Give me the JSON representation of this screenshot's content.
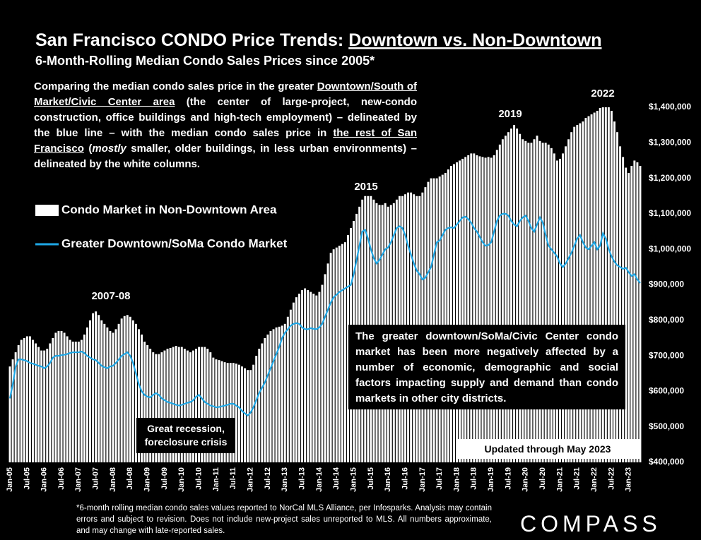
{
  "chart_data": {
    "type": "bar",
    "title": "San Francisco CONDO Price Trends: ",
    "title_underlined": "Downtown vs. Non-Downtown",
    "subtitle": "6-Month-Rolling Median Condo Sales Prices since 2005*",
    "description": [
      {
        "text": "Comparing the median condo sales price in the greater "
      },
      {
        "text": "Downtown/South of Market/Civic Center area",
        "style": "underline"
      },
      {
        "text": " (the center of large-project, new-condo construction, office buildings and high-tech employment) – delineated by the blue line – with the median condo sales price in "
      },
      {
        "text": "the rest of San Francisco",
        "style": "underline"
      },
      {
        "text": " ("
      },
      {
        "text": "mostly",
        "style": "italic"
      },
      {
        "text": " smaller, older buildings, in less urban environments) – delineated by the white columns."
      }
    ],
    "annotations": [
      "2007-08",
      "2015",
      "2019",
      "2022"
    ],
    "notes": {
      "recession": "Great recession, foreclosure crisis",
      "downtown": "The greater downtown/SoMa/Civic Center condo market has been more negatively affected by a number of economic, demographic and social factors impacting supply and demand than condo markets in other city districts.",
      "updated": "Updated through May 2023"
    },
    "footnote": "*6-month rolling median condo sales values reported to NorCal MLS Alliance, per Infosparks. Analysis may contain errors and subject to revision. Does not include new-project sales unreported to MLS. All numbers approximate, and may change with late-reported sales.",
    "logo": "COMPASS",
    "ylim": [
      400000,
      1500000
    ],
    "yticks": [
      {
        "value": 400000,
        "label": "$400,000"
      },
      {
        "value": 500000,
        "label": "$500,000"
      },
      {
        "value": 600000,
        "label": "$600,000"
      },
      {
        "value": 700000,
        "label": "$700,000"
      },
      {
        "value": 800000,
        "label": "$800,000"
      },
      {
        "value": 900000,
        "label": "$900,000"
      },
      {
        "value": 1000000,
        "label": "$1,000,000"
      },
      {
        "value": 1100000,
        "label": "$1,100,000"
      },
      {
        "value": 1200000,
        "label": "$1,200,000"
      },
      {
        "value": 1300000,
        "label": "$1,300,000"
      },
      {
        "value": 1400000,
        "label": "$1,400,000"
      }
    ],
    "grid": false,
    "categories": [
      "Jan-05",
      null,
      null,
      null,
      null,
      null,
      "Jul-05",
      null,
      null,
      null,
      null,
      null,
      "Jan-06",
      null,
      null,
      null,
      null,
      null,
      "Jul-06",
      null,
      null,
      null,
      null,
      null,
      "Jan-07",
      null,
      null,
      null,
      null,
      null,
      "Jul-07",
      null,
      null,
      null,
      null,
      null,
      "Jan-08",
      null,
      null,
      null,
      null,
      null,
      "Jul-08",
      null,
      null,
      null,
      null,
      null,
      "Jan-09",
      null,
      null,
      null,
      null,
      null,
      "Jul-09",
      null,
      null,
      null,
      null,
      null,
      "Jan-10",
      null,
      null,
      null,
      null,
      null,
      "Jul-10",
      null,
      null,
      null,
      null,
      null,
      "Jan-11",
      null,
      null,
      null,
      null,
      null,
      "Jul-11",
      null,
      null,
      null,
      null,
      null,
      "Jan-12",
      null,
      null,
      null,
      null,
      null,
      "Jul-12",
      null,
      null,
      null,
      null,
      null,
      "Jan-13",
      null,
      null,
      null,
      null,
      null,
      "Jul-13",
      null,
      null,
      null,
      null,
      null,
      "Jan-14",
      null,
      null,
      null,
      null,
      null,
      "Jul-14",
      null,
      null,
      null,
      null,
      null,
      "Jan-15",
      null,
      null,
      null,
      null,
      null,
      "Jul-15",
      null,
      null,
      null,
      null,
      null,
      "Jan-16",
      null,
      null,
      null,
      null,
      null,
      "Jul-16",
      null,
      null,
      null,
      null,
      null,
      "Jan-17",
      null,
      null,
      null,
      null,
      null,
      "Jul-17",
      null,
      null,
      null,
      null,
      null,
      "Jan-18",
      null,
      null,
      null,
      null,
      null,
      "Jul-18",
      null,
      null,
      null,
      null,
      null,
      "Jan-19",
      null,
      null,
      null,
      null,
      null,
      "Jul-19",
      null,
      null,
      null,
      null,
      null,
      "Jan-20",
      null,
      null,
      null,
      null,
      null,
      "Jul-20",
      null,
      null,
      null,
      null,
      null,
      "Jan-21",
      null,
      null,
      null,
      null,
      null,
      "Jul-21",
      null,
      null,
      null,
      null,
      null,
      "Jan-22",
      null,
      null,
      null,
      null,
      null,
      "Jul-22",
      null,
      null,
      null,
      null,
      null,
      "Jan-23",
      null,
      null,
      null,
      null
    ],
    "series": [
      {
        "name": "Condo Market in Non-Downtown Area",
        "type": "bar",
        "color": "#ffffff",
        "values": [
          670000,
          690000,
          710000,
          730000,
          745000,
          750000,
          755000,
          755000,
          745000,
          735000,
          725000,
          715000,
          715000,
          720000,
          735000,
          750000,
          765000,
          770000,
          770000,
          765000,
          755000,
          745000,
          740000,
          740000,
          740000,
          745000,
          760000,
          780000,
          800000,
          820000,
          825000,
          815000,
          800000,
          790000,
          780000,
          770000,
          765000,
          775000,
          790000,
          805000,
          812000,
          815000,
          810000,
          800000,
          790000,
          775000,
          760000,
          740000,
          730000,
          720000,
          710000,
          705000,
          705000,
          710000,
          715000,
          720000,
          722000,
          725000,
          728000,
          725000,
          725000,
          720000,
          715000,
          710000,
          715000,
          720000,
          725000,
          725000,
          725000,
          720000,
          710000,
          695000,
          690000,
          688000,
          685000,
          682000,
          680000,
          680000,
          680000,
          678000,
          675000,
          670000,
          665000,
          660000,
          660000,
          675000,
          700000,
          720000,
          735000,
          750000,
          760000,
          770000,
          775000,
          780000,
          782000,
          785000,
          790000,
          810000,
          830000,
          850000,
          865000,
          875000,
          885000,
          890000,
          885000,
          880000,
          875000,
          870000,
          880000,
          900000,
          930000,
          960000,
          990000,
          1000000,
          1005000,
          1010000,
          1015000,
          1020000,
          1040000,
          1060000,
          1080000,
          1100000,
          1120000,
          1140000,
          1150000,
          1150000,
          1150000,
          1140000,
          1130000,
          1125000,
          1125000,
          1130000,
          1120000,
          1125000,
          1130000,
          1140000,
          1150000,
          1150000,
          1155000,
          1160000,
          1160000,
          1155000,
          1150000,
          1150000,
          1160000,
          1175000,
          1190000,
          1200000,
          1200000,
          1200000,
          1205000,
          1210000,
          1215000,
          1225000,
          1235000,
          1240000,
          1245000,
          1250000,
          1255000,
          1260000,
          1265000,
          1270000,
          1270000,
          1265000,
          1262000,
          1260000,
          1258000,
          1260000,
          1258000,
          1265000,
          1280000,
          1295000,
          1310000,
          1320000,
          1330000,
          1340000,
          1350000,
          1340000,
          1325000,
          1310000,
          1305000,
          1300000,
          1300000,
          1310000,
          1320000,
          1305000,
          1300000,
          1300000,
          1295000,
          1285000,
          1270000,
          1250000,
          1255000,
          1270000,
          1290000,
          1310000,
          1330000,
          1345000,
          1350000,
          1355000,
          1360000,
          1370000,
          1375000,
          1380000,
          1385000,
          1390000,
          1398000,
          1400000,
          1400000,
          1400000,
          1390000,
          1360000,
          1330000,
          1290000,
          1260000,
          1230000,
          1215000,
          1235000,
          1250000,
          1245000,
          1235000
        ]
      },
      {
        "name": "Greater Downtown/SoMa Condo Market",
        "type": "line",
        "color": "#1ea7e6",
        "values": [
          580000,
          620000,
          670000,
          690000,
          690000,
          688000,
          685000,
          680000,
          678000,
          675000,
          672000,
          670000,
          665000,
          670000,
          680000,
          695000,
          700000,
          700000,
          702000,
          703000,
          705000,
          708000,
          710000,
          710000,
          710000,
          712000,
          708000,
          700000,
          695000,
          690000,
          688000,
          680000,
          672000,
          668000,
          665000,
          670000,
          672000,
          680000,
          690000,
          700000,
          705000,
          710000,
          700000,
          680000,
          650000,
          620000,
          600000,
          590000,
          585000,
          583000,
          590000,
          595000,
          590000,
          580000,
          575000,
          570000,
          568000,
          565000,
          562000,
          560000,
          562000,
          565000,
          568000,
          570000,
          575000,
          585000,
          590000,
          580000,
          570000,
          565000,
          560000,
          558000,
          555000,
          556000,
          558000,
          560000,
          562000,
          565000,
          565000,
          560000,
          555000,
          545000,
          538000,
          532000,
          540000,
          555000,
          575000,
          595000,
          610000,
          625000,
          645000,
          665000,
          685000,
          705000,
          725000,
          750000,
          765000,
          775000,
          785000,
          790000,
          792000,
          790000,
          780000,
          775000,
          775000,
          778000,
          776000,
          775000,
          780000,
          790000,
          810000,
          830000,
          850000,
          865000,
          872000,
          880000,
          885000,
          890000,
          895000,
          900000,
          930000,
          970000,
          1010000,
          1050000,
          1055000,
          1030000,
          1000000,
          975000,
          960000,
          970000,
          985000,
          1000000,
          1005000,
          1020000,
          1040000,
          1060000,
          1065000,
          1060000,
          1040000,
          1010000,
          985000,
          960000,
          940000,
          930000,
          915000,
          920000,
          935000,
          950000,
          985000,
          1020000,
          1025000,
          1040000,
          1055000,
          1060000,
          1062000,
          1060000,
          1070000,
          1080000,
          1090000,
          1092000,
          1085000,
          1075000,
          1060000,
          1050000,
          1035000,
          1020000,
          1010000,
          1012000,
          1020000,
          1050000,
          1080000,
          1095000,
          1100000,
          1100000,
          1095000,
          1080000,
          1070000,
          1065000,
          1080000,
          1090000,
          1095000,
          1080000,
          1060000,
          1050000,
          1070000,
          1090000,
          1075000,
          1040000,
          1010000,
          1000000,
          990000,
          980000,
          960000,
          950000,
          960000,
          975000,
          990000,
          1010000,
          1030000,
          1040000,
          1020000,
          1005000,
          1000000,
          1010000,
          1020000,
          1000000,
          1010000,
          1045000,
          1030000,
          1000000,
          980000,
          965000,
          955000,
          950000,
          945000,
          948000,
          935000,
          925000,
          930000,
          915000,
          905000
        ]
      }
    ]
  }
}
